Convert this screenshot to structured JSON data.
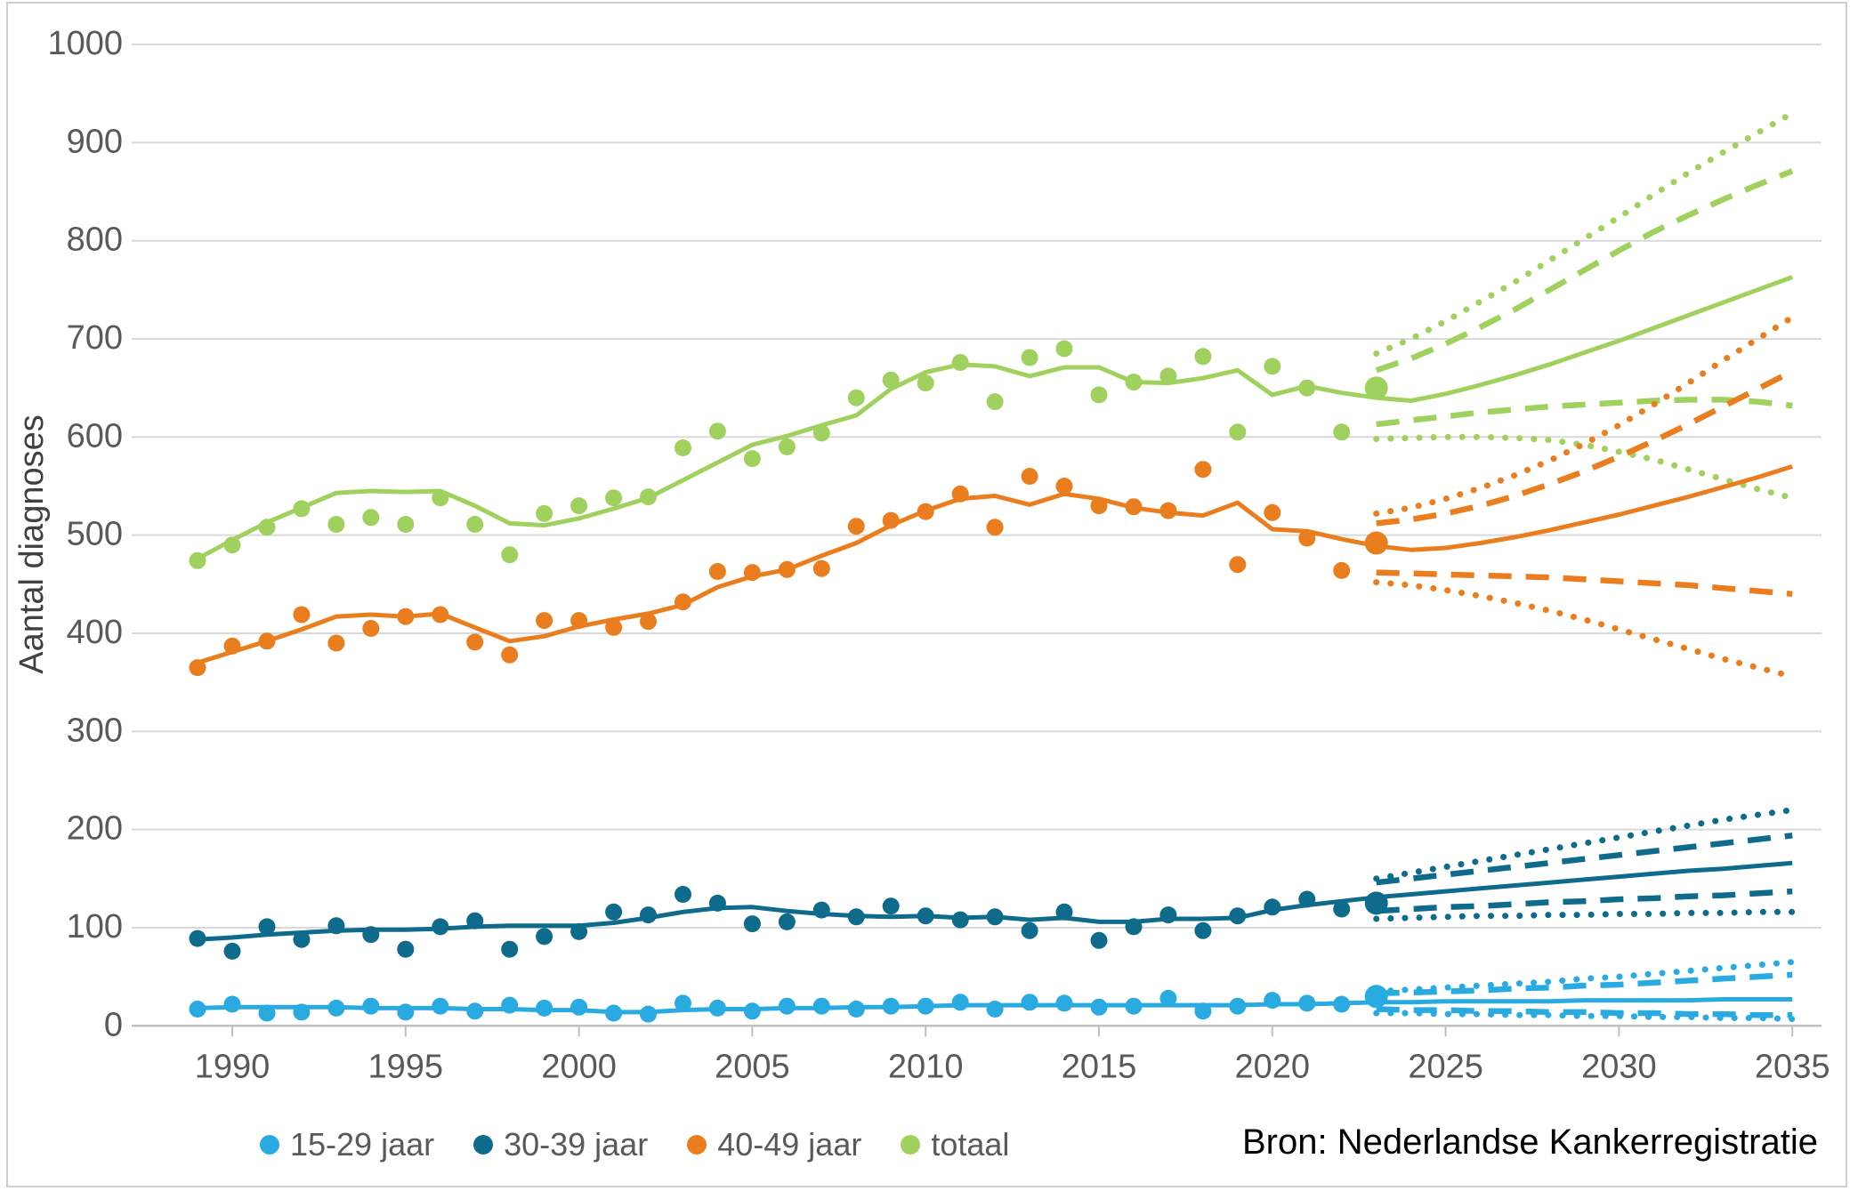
{
  "source_note": "Bron: Nederlandse Kankerregistratie",
  "colors": {
    "grid": "#d9d9d9",
    "axis_line": "#c0c0c0",
    "tick": "#bfbfbf",
    "axis_text": "#595959",
    "axis_title_text": "#404040",
    "source_text": "#000000",
    "frame": "#cfcfcf"
  },
  "chart_data": {
    "type": "line",
    "title": "",
    "xlabel": "",
    "ylabel": "Aantal diagnoses",
    "y_axis": {
      "min": 0,
      "max": 1000,
      "step": 100,
      "grid": true
    },
    "x_axis": {
      "ticks": [
        1990,
        1995,
        2000,
        2005,
        2010,
        2015,
        2020,
        2025,
        2030,
        2035
      ]
    },
    "legend_position": "bottom-left",
    "years_observed": [
      1989,
      1990,
      1991,
      1992,
      1993,
      1994,
      1995,
      1996,
      1997,
      1998,
      1999,
      2000,
      2001,
      2002,
      2003,
      2004,
      2005,
      2006,
      2007,
      2008,
      2009,
      2010,
      2011,
      2012,
      2013,
      2014,
      2015,
      2016,
      2017,
      2018,
      2019,
      2020,
      2021,
      2022,
      2023
    ],
    "years_projection": [
      2023,
      2024,
      2025,
      2026,
      2027,
      2028,
      2029,
      2030,
      2031,
      2032,
      2033,
      2034,
      2035
    ],
    "series": [
      {
        "name": "totaal",
        "color": "#a0d15f",
        "observed": [
          474,
          490,
          508,
          527,
          511,
          518,
          511,
          538,
          511,
          480,
          522,
          530,
          538,
          539,
          589,
          606,
          578,
          590,
          604,
          640,
          658,
          655,
          676,
          636,
          681,
          690,
          643,
          656,
          662,
          682,
          605,
          672,
          650,
          605,
          650
        ],
        "trend": [
          476,
          495,
          513,
          528,
          543,
          545,
          544,
          545,
          530,
          512,
          510,
          517,
          527,
          538,
          556,
          574,
          592,
          601,
          612,
          622,
          649,
          666,
          674,
          672,
          662,
          671,
          671,
          656,
          655,
          660,
          668,
          643,
          652,
          645,
          640
        ],
        "projection": {
          "central": [
            640,
            637,
            644,
            653,
            663,
            674,
            686,
            698,
            711,
            724,
            737,
            750,
            763
          ],
          "dashed_upper": [
            668,
            680,
            695,
            712,
            730,
            750,
            770,
            790,
            809,
            826,
            842,
            857,
            871
          ],
          "dotted_upper": [
            685,
            700,
            718,
            738,
            758,
            780,
            802,
            824,
            847,
            869,
            890,
            910,
            930
          ],
          "dashed_lower": [
            613,
            617,
            621,
            625,
            628,
            631,
            633,
            635,
            637,
            638,
            638,
            636,
            632
          ],
          "dotted_lower": [
            598,
            599,
            600,
            600,
            599,
            597,
            592,
            585,
            577,
            567,
            557,
            547,
            538
          ]
        }
      },
      {
        "name": "40-49 jaar",
        "color": "#ea7e1f",
        "observed": [
          365,
          387,
          392,
          419,
          390,
          405,
          417,
          419,
          391,
          378,
          413,
          413,
          406,
          412,
          432,
          463,
          462,
          465,
          466,
          509,
          515,
          524,
          542,
          508,
          560,
          550,
          530,
          529,
          525,
          567,
          470,
          523,
          497,
          464,
          492
        ],
        "trend": [
          370,
          381,
          392,
          404,
          417,
          419,
          417,
          420,
          406,
          392,
          397,
          407,
          414,
          420,
          429,
          447,
          458,
          465,
          479,
          492,
          510,
          525,
          537,
          540,
          531,
          542,
          537,
          528,
          523,
          520,
          533,
          506,
          504,
          496,
          489
        ],
        "projection": {
          "central": [
            489,
            485,
            487,
            492,
            498,
            505,
            513,
            521,
            530,
            539,
            549,
            559,
            570
          ],
          "dashed_upper": [
            512,
            516,
            522,
            530,
            540,
            552,
            565,
            580,
            596,
            613,
            631,
            649,
            667
          ],
          "dotted_upper": [
            522,
            528,
            537,
            548,
            561,
            576,
            593,
            612,
            633,
            655,
            678,
            700,
            722
          ],
          "dashed_lower": [
            462,
            461,
            460,
            459,
            458,
            457,
            455,
            453,
            451,
            449,
            446,
            443,
            440
          ],
          "dotted_lower": [
            452,
            449,
            444,
            438,
            431,
            423,
            414,
            404,
            394,
            384,
            374,
            365,
            356
          ]
        }
      },
      {
        "name": "30-39 jaar",
        "color": "#0e6b8b",
        "observed": [
          89,
          76,
          101,
          88,
          102,
          93,
          78,
          101,
          107,
          78,
          91,
          96,
          116,
          113,
          134,
          125,
          104,
          106,
          118,
          111,
          122,
          112,
          108,
          111,
          97,
          116,
          87,
          101,
          113,
          97,
          112,
          121,
          129,
          119,
          125
        ],
        "trend": [
          88,
          90,
          93,
          95,
          97,
          98,
          98,
          99,
          101,
          102,
          102,
          102,
          105,
          110,
          116,
          120,
          121,
          117,
          114,
          112,
          111,
          112,
          110,
          111,
          108,
          110,
          106,
          106,
          109,
          109,
          110,
          118,
          123,
          127,
          131
        ],
        "projection": {
          "central": [
            131,
            134,
            137,
            140,
            143,
            146,
            149,
            152,
            155,
            158,
            160,
            163,
            166
          ],
          "dashed_upper": [
            146,
            150,
            154,
            158,
            162,
            166,
            170,
            174,
            178,
            182,
            186,
            190,
            194
          ],
          "dotted_upper": [
            150,
            156,
            162,
            168,
            174,
            180,
            186,
            192,
            198,
            204,
            210,
            215,
            220
          ],
          "dashed_lower": [
            117,
            119,
            121,
            122,
            124,
            126,
            127,
            129,
            130,
            132,
            133,
            135,
            137
          ],
          "dotted_lower": [
            109,
            110,
            111,
            112,
            112,
            113,
            113,
            114,
            114,
            115,
            115,
            116,
            116
          ]
        }
      },
      {
        "name": "15-29 jaar",
        "color": "#29abe2",
        "observed": [
          17,
          22,
          13,
          14,
          18,
          20,
          14,
          20,
          15,
          21,
          18,
          19,
          13,
          12,
          23,
          18,
          15,
          20,
          20,
          17,
          20,
          20,
          24,
          17,
          24,
          23,
          19,
          20,
          28,
          15,
          20,
          26,
          23,
          22,
          30
        ],
        "trend": [
          18,
          19,
          19,
          19,
          19,
          18,
          18,
          18,
          17,
          17,
          16,
          16,
          14,
          14,
          16,
          17,
          17,
          18,
          18,
          19,
          19,
          20,
          21,
          21,
          21,
          21,
          21,
          21,
          21,
          21,
          21,
          22,
          22,
          23,
          24
        ],
        "projection": {
          "central": [
            24,
            24,
            25,
            25,
            25,
            25,
            26,
            26,
            26,
            26,
            27,
            27,
            27
          ],
          "dashed_upper": [
            33,
            34,
            35,
            36,
            38,
            39,
            41,
            42,
            44,
            46,
            48,
            50,
            52
          ],
          "dotted_upper": [
            35,
            37,
            39,
            41,
            43,
            45,
            48,
            50,
            53,
            56,
            59,
            62,
            65
          ],
          "dashed_lower": [
            17,
            16,
            16,
            15,
            15,
            14,
            14,
            13,
            13,
            12,
            12,
            11,
            11
          ],
          "dotted_lower": [
            13,
            13,
            12,
            12,
            11,
            11,
            10,
            10,
            9,
            9,
            8,
            8,
            7
          ]
        }
      }
    ],
    "legend_order": [
      "15-29 jaar",
      "30-39 jaar",
      "40-49 jaar",
      "totaal"
    ]
  }
}
